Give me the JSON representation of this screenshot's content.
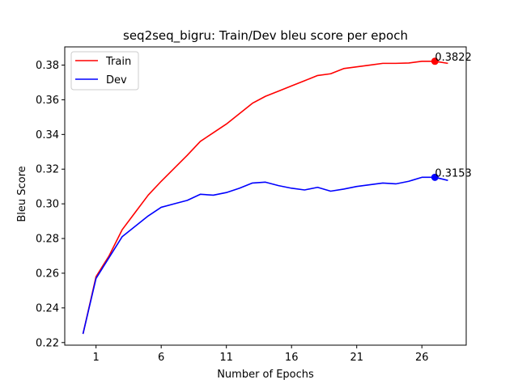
{
  "chart_data": {
    "type": "line",
    "title": "seq2seq_bigru: Train/Dev bleu score per epoch",
    "xlabel": "Number of Epochs",
    "ylabel": "Bleu Score",
    "xlim": [
      -1.4,
      29.4
    ],
    "ylim": [
      0.2185,
      0.3905
    ],
    "xticks": [
      1,
      6,
      11,
      16,
      21,
      26
    ],
    "yticks": [
      0.22,
      0.24,
      0.26,
      0.28,
      0.3,
      0.32,
      0.34,
      0.36,
      0.38
    ],
    "ytick_labels": [
      "0.22",
      "0.24",
      "0.26",
      "0.28",
      "0.30",
      "0.32",
      "0.34",
      "0.36",
      "0.38"
    ],
    "grid": false,
    "legend_position": "upper-left",
    "x": [
      0,
      1,
      2,
      3,
      4,
      5,
      6,
      7,
      8,
      9,
      10,
      11,
      12,
      13,
      14,
      15,
      16,
      17,
      18,
      19,
      20,
      21,
      22,
      23,
      24,
      25,
      26,
      27,
      28
    ],
    "series": [
      {
        "name": "Train",
        "color": "#ff0000",
        "values": [
          0.225,
          0.258,
          0.27,
          0.285,
          0.295,
          0.305,
          0.313,
          0.3205,
          0.328,
          0.336,
          0.341,
          0.346,
          0.352,
          0.358,
          0.362,
          0.365,
          0.368,
          0.371,
          0.374,
          0.375,
          0.378,
          0.379,
          0.38,
          0.381,
          0.381,
          0.3812,
          0.3822,
          0.3822,
          0.381
        ],
        "marker_x": 27,
        "marker_y": 0.3822,
        "annotation": "0.3822"
      },
      {
        "name": "Dev",
        "color": "#0000ff",
        "values": [
          0.225,
          0.257,
          0.269,
          0.281,
          0.287,
          0.293,
          0.298,
          0.3,
          0.302,
          0.3055,
          0.305,
          0.3065,
          0.309,
          0.312,
          0.3125,
          0.3105,
          0.309,
          0.308,
          0.3095,
          0.3073,
          0.3085,
          0.31,
          0.311,
          0.312,
          0.3115,
          0.313,
          0.3153,
          0.3153,
          0.3135
        ],
        "marker_x": 27,
        "marker_y": 0.3153,
        "annotation": "0.3153"
      }
    ]
  }
}
